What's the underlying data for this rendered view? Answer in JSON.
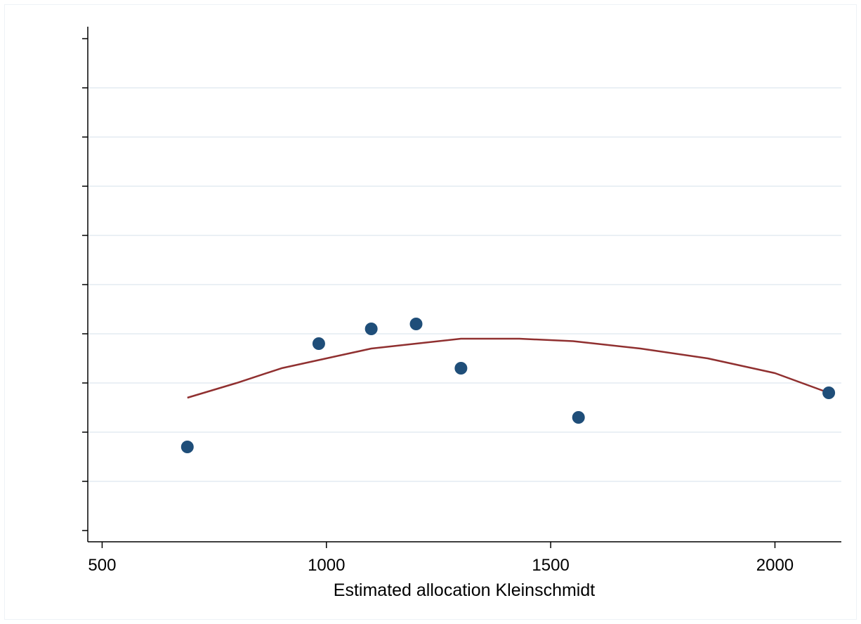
{
  "chart_data": {
    "type": "scatter",
    "title": "",
    "xlabel": "Estimated allocation Kleinschmidt",
    "ylabel": "",
    "xlim": [
      468,
      2148
    ],
    "ylim": [
      0,
      10
    ],
    "x_ticks": [
      500,
      1000,
      1500,
      2000
    ],
    "y_tick_count": 11,
    "y_tick_labels_shown": false,
    "grid": "horizontal",
    "colors": {
      "points": "#1f4e79",
      "fit": "#903030",
      "grid": "#e4ecf2",
      "axis": "#000000"
    },
    "series": [
      {
        "kind": "points",
        "x": [
          690,
          983,
          1100,
          1200,
          1300,
          1562,
          2120
        ],
        "y": [
          1.7,
          3.8,
          4.1,
          4.2,
          3.3,
          2.3,
          2.8
        ]
      },
      {
        "kind": "fit-line",
        "x": [
          690,
          800,
          900,
          1000,
          1100,
          1200,
          1300,
          1430,
          1550,
          1700,
          1850,
          2000,
          2120
        ],
        "y": [
          2.7,
          3.0,
          3.3,
          3.5,
          3.7,
          3.8,
          3.9,
          3.9,
          3.85,
          3.7,
          3.5,
          3.2,
          2.8
        ]
      }
    ]
  }
}
